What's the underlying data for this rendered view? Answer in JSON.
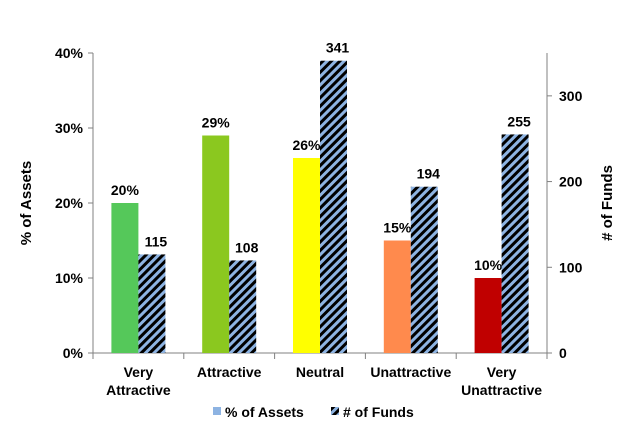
{
  "chart_data": {
    "type": "bar",
    "categories": [
      [
        "Very",
        "Attractive"
      ],
      [
        "Attractive"
      ],
      [
        "Neutral"
      ],
      [
        "Unattractive"
      ],
      [
        "Very",
        "Unattractive"
      ]
    ],
    "series": [
      {
        "name": "% of Assets",
        "axis": "left",
        "values": [
          20,
          29,
          26,
          15,
          10
        ],
        "labels": [
          "20%",
          "29%",
          "26%",
          "15%",
          "10%"
        ],
        "colors": [
          "#55c85a",
          "#8bc81f",
          "#ffff00",
          "#ff8a4d",
          "#c00000"
        ],
        "legend_color": "#8db3e2"
      },
      {
        "name": "# of Funds",
        "axis": "right",
        "values": [
          115,
          108,
          341,
          194,
          255
        ],
        "labels": [
          "115",
          "108",
          "341",
          "194",
          "255"
        ],
        "pattern": "diagonal-stripes",
        "pattern_colors": [
          "#8db3e2",
          "#000000"
        ]
      }
    ],
    "y_left": {
      "label": "% of Assets",
      "ticks": [
        "0%",
        "10%",
        "20%",
        "30%",
        "40%"
      ],
      "tick_values": [
        0,
        10,
        20,
        30,
        40
      ],
      "range": [
        0,
        40
      ]
    },
    "y_right": {
      "label": "# of Funds",
      "ticks": [
        "0",
        "100",
        "200",
        "300"
      ],
      "tick_values": [
        0,
        100,
        200,
        300
      ],
      "range": [
        0,
        350
      ]
    },
    "legend_position": "bottom",
    "grid": false
  }
}
